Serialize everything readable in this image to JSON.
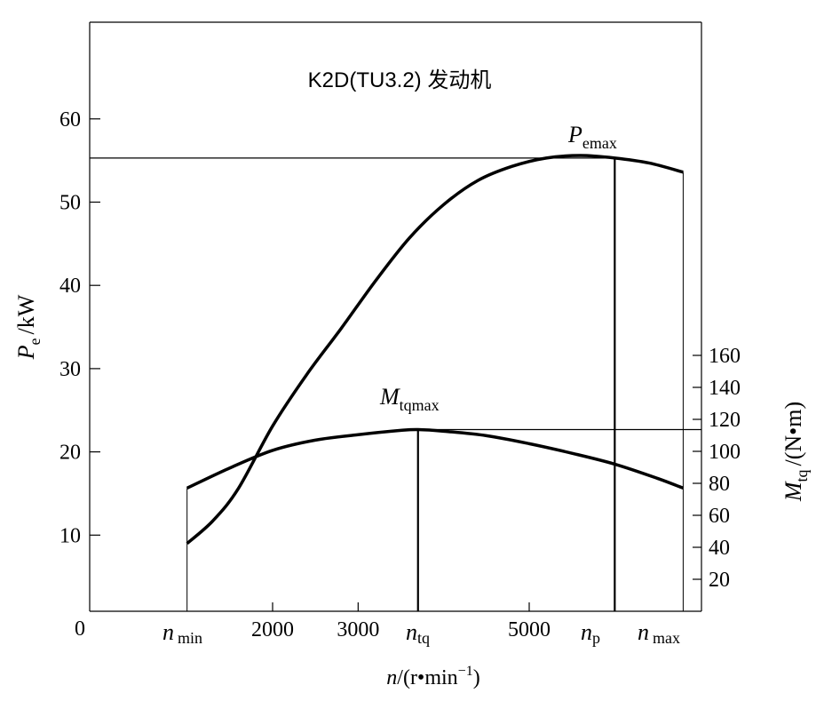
{
  "chart_data": {
    "type": "line",
    "title": "K2D(TU3.2) 发动机",
    "x_axis": {
      "label_var": "n",
      "label_unit": "/(r•min",
      "label_unit_sup": "−1",
      "label_unit_close": ")",
      "origin_label": "0",
      "ticks": [
        2000,
        3000,
        5000
      ],
      "tick_labels": [
        "2000",
        "3000",
        "5000"
      ],
      "marker_labels": [
        {
          "base": "n",
          "sub": "min",
          "x": 1000
        },
        {
          "base": "n",
          "sub": "tq",
          "x": 3700
        },
        {
          "base": "n",
          "sub": "p",
          "x": 6000
        },
        {
          "base": "n",
          "sub": "max",
          "x": 6800
        }
      ]
    },
    "y_left": {
      "label_var": "P",
      "label_sub": "e",
      "label_unit": "/kW",
      "ticks": [
        10,
        20,
        30,
        40,
        50,
        60
      ],
      "tick_labels": [
        "10",
        "20",
        "30",
        "40",
        "50",
        "60"
      ]
    },
    "y_right": {
      "label_var": "M",
      "label_sub": "tq",
      "label_unit": "/(N•m)",
      "ticks": [
        20,
        40,
        60,
        80,
        100,
        120,
        140,
        160
      ],
      "tick_labels": [
        "20",
        "40",
        "60",
        "80",
        "100",
        "120",
        "140",
        "160"
      ]
    },
    "series": [
      {
        "unit_axis": "left",
        "x": [
          1000,
          1300,
          1600,
          2000,
          2400,
          2800,
          3200,
          3600,
          4000,
          4400,
          4800,
          5200,
          5600,
          6000,
          6400,
          6800
        ],
        "values": [
          9.0,
          11.7,
          15.6,
          23.1,
          29.3,
          34.8,
          40.5,
          45.7,
          49.7,
          52.6,
          54.3,
          55.3,
          55.6,
          55.3,
          54.7,
          53.6
        ]
      },
      {
        "unit_axis": "right",
        "x": [
          1000,
          1500,
          2000,
          2500,
          3000,
          3500,
          3700,
          4000,
          4500,
          5000,
          5500,
          6000,
          6500,
          6800
        ],
        "values": [
          77.0,
          89.6,
          100.6,
          107.0,
          110.4,
          113.1,
          113.6,
          112.6,
          109.8,
          104.8,
          98.8,
          92.0,
          83.1,
          77.0
        ]
      }
    ],
    "annotations": [
      {
        "base": "P",
        "sub": "emax",
        "x": 6000,
        "y_left": 55.3
      },
      {
        "base": "M",
        "sub": "tqmax",
        "x": 3700,
        "y_right": 113.6
      }
    ]
  }
}
